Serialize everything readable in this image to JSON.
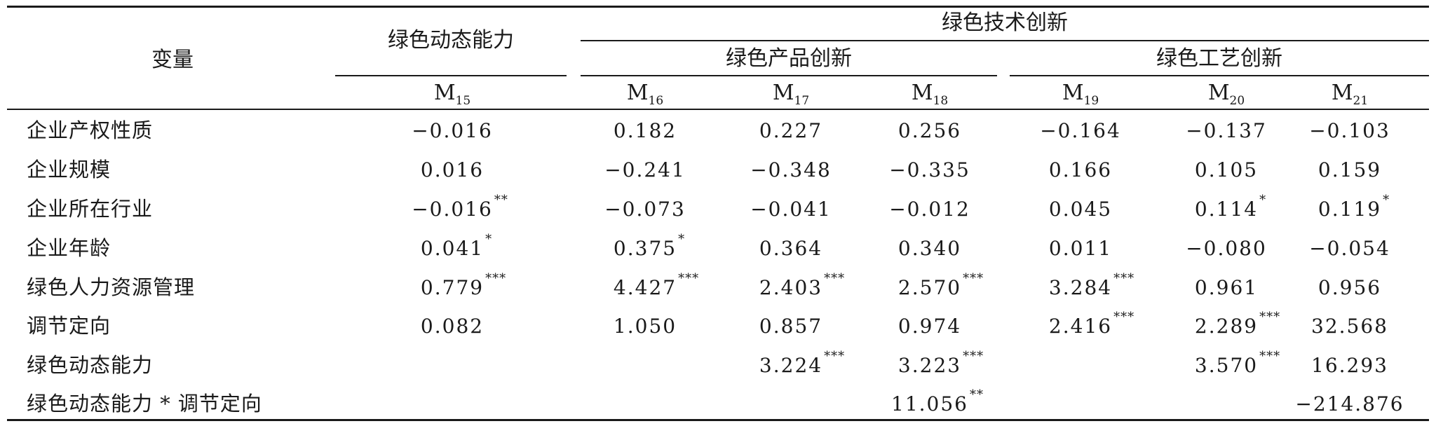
{
  "table": {
    "header": {
      "variable": "变量",
      "dynamic": "绿色动态能力",
      "innovation": "绿色技术创新",
      "product": "绿色产品创新",
      "process": "绿色工艺创新",
      "models": [
        {
          "m": "M",
          "sub": "15"
        },
        {
          "m": "M",
          "sub": "16"
        },
        {
          "m": "M",
          "sub": "17"
        },
        {
          "m": "M",
          "sub": "18"
        },
        {
          "m": "M",
          "sub": "19"
        },
        {
          "m": "M",
          "sub": "20"
        },
        {
          "m": "M",
          "sub": "21"
        }
      ]
    },
    "rows": [
      {
        "label": "企业产权性质",
        "cells": [
          {
            "v": "−0.016",
            "s": ""
          },
          {
            "v": "0.182",
            "s": ""
          },
          {
            "v": "0.227",
            "s": ""
          },
          {
            "v": "0.256",
            "s": ""
          },
          {
            "v": "−0.164",
            "s": ""
          },
          {
            "v": "−0.137",
            "s": ""
          },
          {
            "v": "−0.103",
            "s": ""
          }
        ]
      },
      {
        "label": "企业规模",
        "cells": [
          {
            "v": "0.016",
            "s": ""
          },
          {
            "v": "−0.241",
            "s": ""
          },
          {
            "v": "−0.348",
            "s": ""
          },
          {
            "v": "−0.335",
            "s": ""
          },
          {
            "v": "0.166",
            "s": ""
          },
          {
            "v": "0.105",
            "s": ""
          },
          {
            "v": "0.159",
            "s": ""
          }
        ]
      },
      {
        "label": "企业所在行业",
        "cells": [
          {
            "v": "−0.016",
            "s": "**"
          },
          {
            "v": "−0.073",
            "s": ""
          },
          {
            "v": "−0.041",
            "s": ""
          },
          {
            "v": "−0.012",
            "s": ""
          },
          {
            "v": "0.045",
            "s": ""
          },
          {
            "v": "0.114",
            "s": "*"
          },
          {
            "v": "0.119",
            "s": "*"
          }
        ]
      },
      {
        "label": "企业年龄",
        "cells": [
          {
            "v": "0.041",
            "s": "*"
          },
          {
            "v": "0.375",
            "s": "*"
          },
          {
            "v": "0.364",
            "s": ""
          },
          {
            "v": "0.340",
            "s": ""
          },
          {
            "v": "0.011",
            "s": ""
          },
          {
            "v": "−0.080",
            "s": ""
          },
          {
            "v": "−0.054",
            "s": ""
          }
        ]
      },
      {
        "label": "绿色人力资源管理",
        "cells": [
          {
            "v": "0.779",
            "s": "***"
          },
          {
            "v": "4.427",
            "s": "***"
          },
          {
            "v": "2.403",
            "s": "***"
          },
          {
            "v": "2.570",
            "s": "***"
          },
          {
            "v": "3.284",
            "s": "***"
          },
          {
            "v": "0.961",
            "s": ""
          },
          {
            "v": "0.956",
            "s": ""
          }
        ]
      },
      {
        "label": "调节定向",
        "cells": [
          {
            "v": "0.082",
            "s": ""
          },
          {
            "v": "1.050",
            "s": ""
          },
          {
            "v": "0.857",
            "s": ""
          },
          {
            "v": "0.974",
            "s": ""
          },
          {
            "v": "2.416",
            "s": "***"
          },
          {
            "v": "2.289",
            "s": "***"
          },
          {
            "v": "32.568",
            "s": ""
          }
        ]
      },
      {
        "label": "绿色动态能力",
        "cells": [
          {
            "v": "",
            "s": ""
          },
          {
            "v": "",
            "s": ""
          },
          {
            "v": "3.224",
            "s": "***"
          },
          {
            "v": "3.223",
            "s": "***"
          },
          {
            "v": "",
            "s": ""
          },
          {
            "v": "3.570",
            "s": "***"
          },
          {
            "v": "16.293",
            "s": ""
          }
        ]
      },
      {
        "label": "绿色动态能力 * 调节定向",
        "cells": [
          {
            "v": "",
            "s": ""
          },
          {
            "v": "",
            "s": ""
          },
          {
            "v": "",
            "s": ""
          },
          {
            "v": "11.056",
            "s": "**"
          },
          {
            "v": "",
            "s": ""
          },
          {
            "v": "",
            "s": ""
          },
          {
            "v": "−214.876",
            "s": ""
          }
        ]
      }
    ]
  }
}
